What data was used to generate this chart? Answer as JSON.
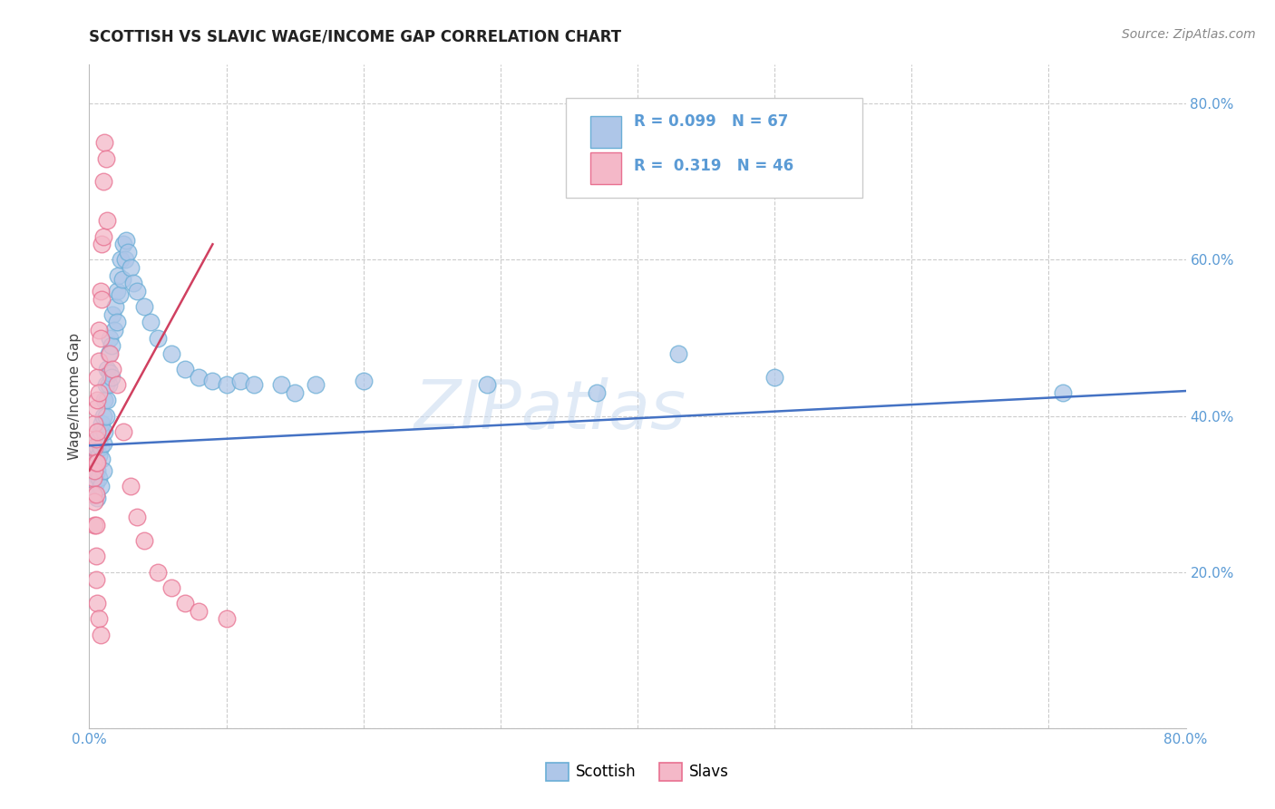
{
  "title": "SCOTTISH VS SLAVIC WAGE/INCOME GAP CORRELATION CHART",
  "source": "Source: ZipAtlas.com",
  "ylabel": "Wage/Income Gap",
  "xlim": [
    0.0,
    0.8
  ],
  "ylim": [
    0.0,
    0.85
  ],
  "background_color": "#ffffff",
  "grid_color": "#cccccc",
  "watermark": "ZIPatlas",
  "legend_r1": "R = 0.099",
  "legend_n1": "N = 67",
  "legend_r2": "R = 0.319",
  "legend_n2": "N = 46",
  "scottish_color": "#aec6e8",
  "slavic_color": "#f4b8c8",
  "scottish_edge_color": "#6aaed6",
  "slavic_edge_color": "#e87090",
  "scottish_line_color": "#4472c4",
  "slavic_line_color": "#d04060",
  "tick_color": "#5b9bd5",
  "scottish_scatter": [
    [
      0.003,
      0.345
    ],
    [
      0.004,
      0.325
    ],
    [
      0.004,
      0.3
    ],
    [
      0.005,
      0.315
    ],
    [
      0.005,
      0.355
    ],
    [
      0.005,
      0.34
    ],
    [
      0.006,
      0.36
    ],
    [
      0.006,
      0.33
    ],
    [
      0.006,
      0.295
    ],
    [
      0.007,
      0.37
    ],
    [
      0.007,
      0.35
    ],
    [
      0.007,
      0.32
    ],
    [
      0.008,
      0.38
    ],
    [
      0.008,
      0.36
    ],
    [
      0.008,
      0.31
    ],
    [
      0.009,
      0.39
    ],
    [
      0.009,
      0.345
    ],
    [
      0.01,
      0.4
    ],
    [
      0.01,
      0.365
    ],
    [
      0.01,
      0.33
    ],
    [
      0.011,
      0.42
    ],
    [
      0.011,
      0.38
    ],
    [
      0.012,
      0.44
    ],
    [
      0.012,
      0.4
    ],
    [
      0.013,
      0.46
    ],
    [
      0.013,
      0.42
    ],
    [
      0.014,
      0.48
    ],
    [
      0.014,
      0.44
    ],
    [
      0.015,
      0.5
    ],
    [
      0.015,
      0.455
    ],
    [
      0.016,
      0.49
    ],
    [
      0.016,
      0.45
    ],
    [
      0.017,
      0.53
    ],
    [
      0.018,
      0.51
    ],
    [
      0.019,
      0.54
    ],
    [
      0.02,
      0.56
    ],
    [
      0.02,
      0.52
    ],
    [
      0.021,
      0.58
    ],
    [
      0.022,
      0.555
    ],
    [
      0.023,
      0.6
    ],
    [
      0.024,
      0.575
    ],
    [
      0.025,
      0.62
    ],
    [
      0.026,
      0.6
    ],
    [
      0.027,
      0.625
    ],
    [
      0.028,
      0.61
    ],
    [
      0.03,
      0.59
    ],
    [
      0.032,
      0.57
    ],
    [
      0.035,
      0.56
    ],
    [
      0.04,
      0.54
    ],
    [
      0.045,
      0.52
    ],
    [
      0.05,
      0.5
    ],
    [
      0.06,
      0.48
    ],
    [
      0.07,
      0.46
    ],
    [
      0.08,
      0.45
    ],
    [
      0.09,
      0.445
    ],
    [
      0.1,
      0.44
    ],
    [
      0.11,
      0.445
    ],
    [
      0.12,
      0.44
    ],
    [
      0.14,
      0.44
    ],
    [
      0.15,
      0.43
    ],
    [
      0.165,
      0.44
    ],
    [
      0.2,
      0.445
    ],
    [
      0.29,
      0.44
    ],
    [
      0.37,
      0.43
    ],
    [
      0.43,
      0.48
    ],
    [
      0.5,
      0.45
    ],
    [
      0.71,
      0.43
    ]
  ],
  "slavic_scatter": [
    [
      0.003,
      0.34
    ],
    [
      0.003,
      0.32
    ],
    [
      0.003,
      0.3
    ],
    [
      0.004,
      0.39
    ],
    [
      0.004,
      0.36
    ],
    [
      0.004,
      0.33
    ],
    [
      0.004,
      0.29
    ],
    [
      0.004,
      0.26
    ],
    [
      0.005,
      0.41
    ],
    [
      0.005,
      0.37
    ],
    [
      0.005,
      0.34
    ],
    [
      0.005,
      0.3
    ],
    [
      0.005,
      0.26
    ],
    [
      0.005,
      0.22
    ],
    [
      0.005,
      0.19
    ],
    [
      0.006,
      0.45
    ],
    [
      0.006,
      0.42
    ],
    [
      0.006,
      0.38
    ],
    [
      0.006,
      0.34
    ],
    [
      0.006,
      0.16
    ],
    [
      0.007,
      0.51
    ],
    [
      0.007,
      0.47
    ],
    [
      0.007,
      0.43
    ],
    [
      0.007,
      0.14
    ],
    [
      0.008,
      0.56
    ],
    [
      0.008,
      0.5
    ],
    [
      0.008,
      0.12
    ],
    [
      0.009,
      0.62
    ],
    [
      0.009,
      0.55
    ],
    [
      0.01,
      0.7
    ],
    [
      0.01,
      0.63
    ],
    [
      0.011,
      0.75
    ],
    [
      0.012,
      0.73
    ],
    [
      0.013,
      0.65
    ],
    [
      0.015,
      0.48
    ],
    [
      0.017,
      0.46
    ],
    [
      0.02,
      0.44
    ],
    [
      0.025,
      0.38
    ],
    [
      0.03,
      0.31
    ],
    [
      0.035,
      0.27
    ],
    [
      0.04,
      0.24
    ],
    [
      0.05,
      0.2
    ],
    [
      0.06,
      0.18
    ],
    [
      0.07,
      0.16
    ],
    [
      0.08,
      0.15
    ],
    [
      0.1,
      0.14
    ]
  ],
  "scottish_line": [
    [
      0.0,
      0.362
    ],
    [
      0.8,
      0.432
    ]
  ],
  "slavic_line": [
    [
      0.0,
      0.33
    ],
    [
      0.09,
      0.62
    ]
  ]
}
